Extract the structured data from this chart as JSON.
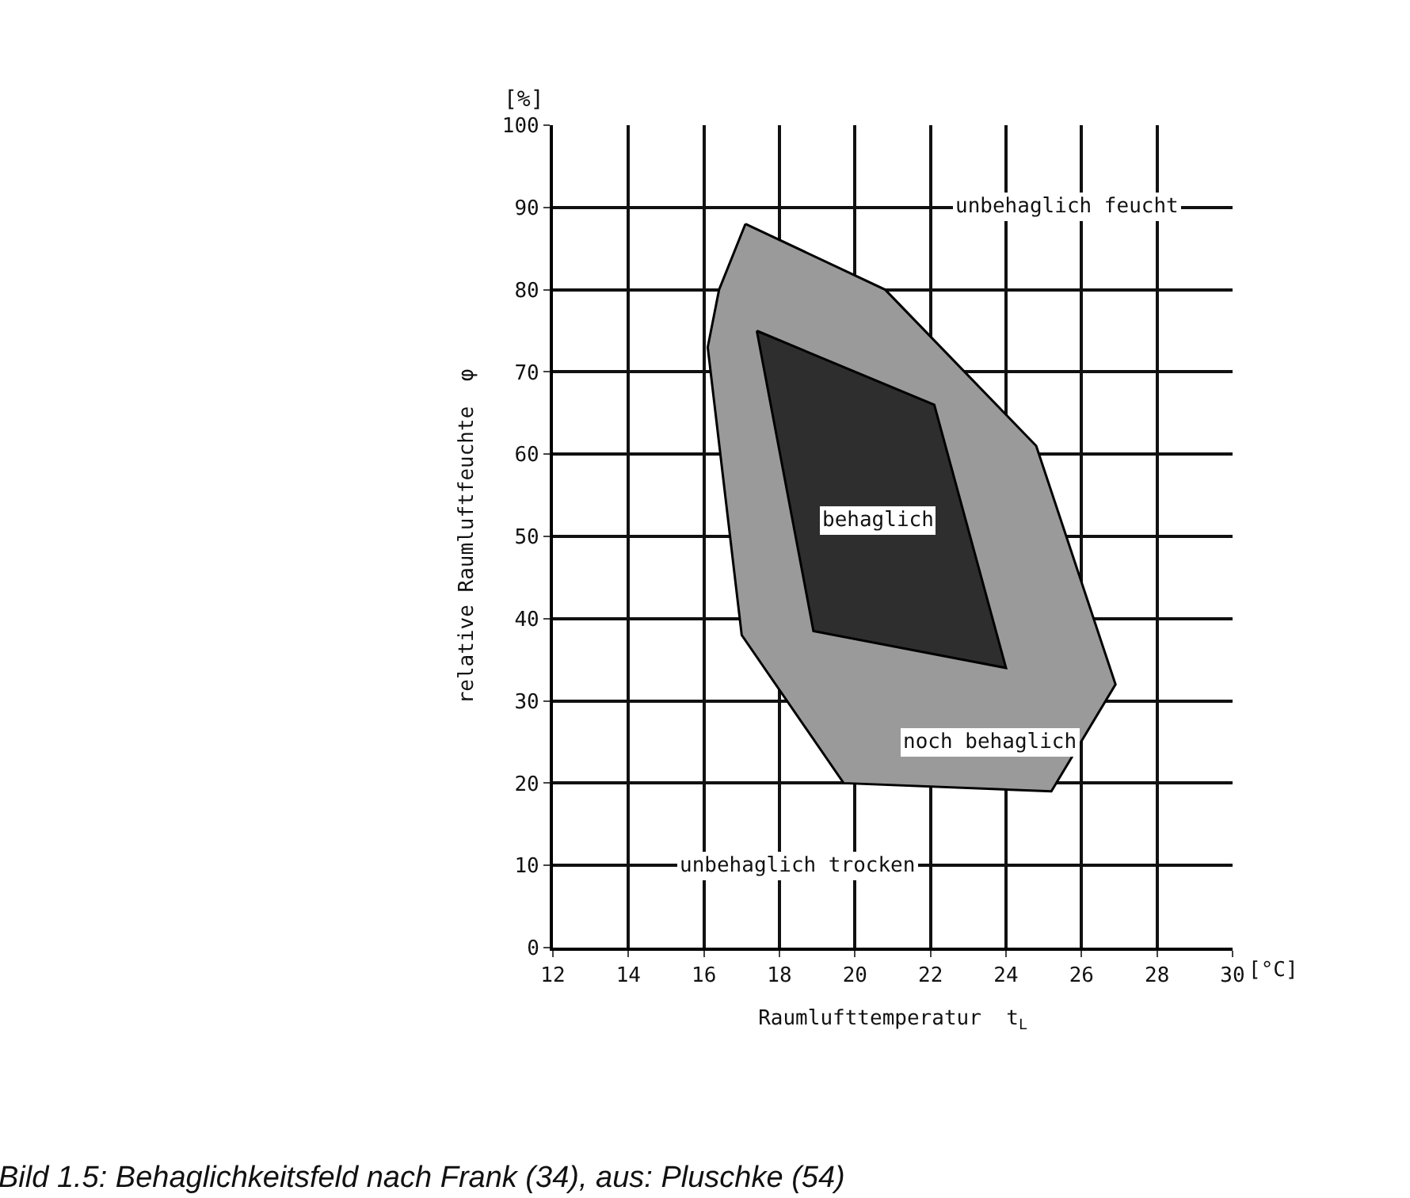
{
  "chart_data": {
    "type": "area",
    "xlabel": "Raumlufttemperatur  t$_{L}$",
    "ylabel": "relative Raumluftfeuchte  φ",
    "xlim": [
      12,
      30
    ],
    "ylim": [
      0,
      100
    ],
    "xticks": [
      12,
      14,
      16,
      18,
      20,
      22,
      24,
      26,
      28,
      30
    ],
    "yticks": [
      0,
      10,
      20,
      30,
      40,
      50,
      60,
      70,
      80,
      90,
      100
    ],
    "grid": true,
    "series": [
      {
        "color": "#9a9a9a",
        "x": [
          17.1,
          20.8,
          24.8,
          26.9,
          25.2,
          19.7,
          17.0,
          16.1,
          16.4,
          17.1
        ],
        "values": [
          88,
          80,
          61,
          32,
          19,
          20,
          38,
          73,
          80,
          88
        ]
      },
      {
        "color": "#2e2e2e",
        "x": [
          17.4,
          22.1,
          24.0,
          18.9,
          17.4
        ],
        "values": [
          75,
          66,
          34,
          38.5,
          75
        ]
      }
    ],
    "annotations": [
      "[%]",
      "[°C]",
      "Bild 1.5: Behaglichkeitsfeld nach Frank (34), aus: Pluschke (54)",
      "unbehaglich feucht",
      "unbehaglich trocken",
      "behaglich",
      "noch behaglich"
    ]
  }
}
